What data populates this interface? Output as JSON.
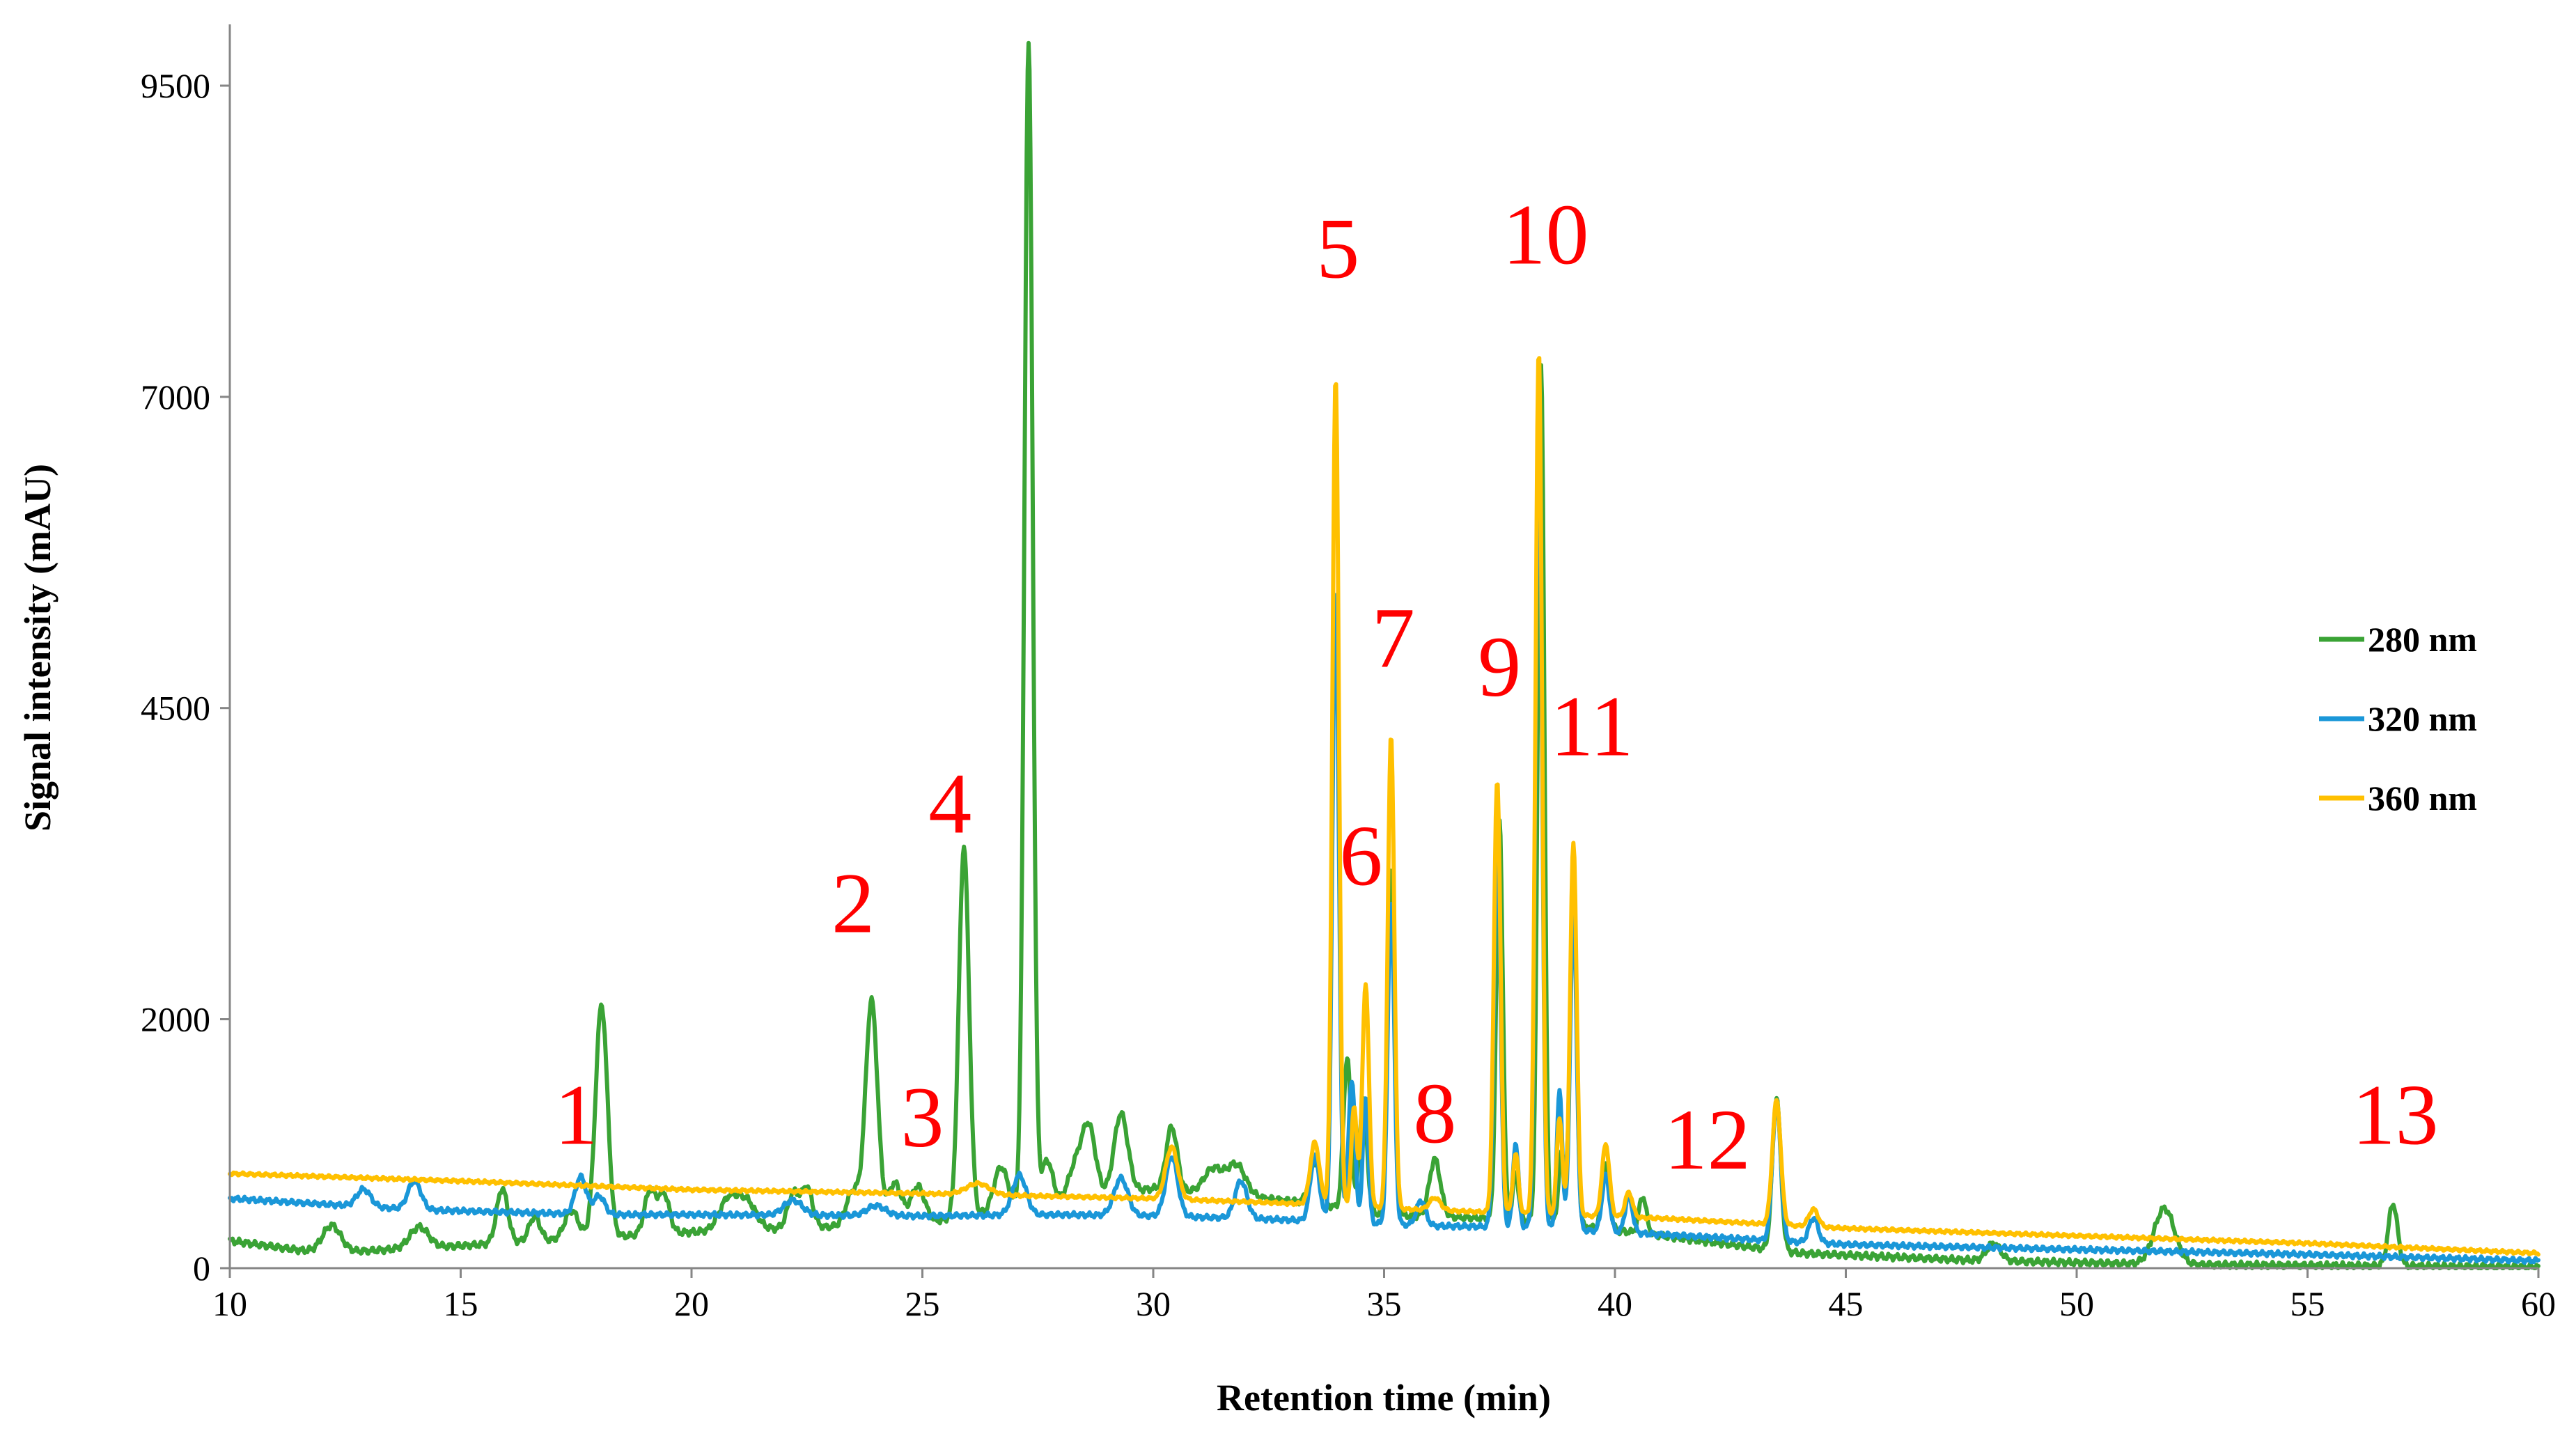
{
  "chart_data": {
    "type": "line",
    "xlabel": "Retention time (min)",
    "ylabel": "Signal intensity (mAU)",
    "xlim": [
      10,
      60
    ],
    "ylim": [
      0,
      10000
    ],
    "x_ticks": [
      10,
      15,
      20,
      25,
      30,
      35,
      40,
      45,
      50,
      55,
      60
    ],
    "y_ticks": [
      0,
      2000,
      4500,
      7000,
      9500
    ],
    "grid": false,
    "legend_position": "right",
    "series": [
      {
        "name": "280 nm",
        "color": "#3aa335",
        "baseline": [
          [
            10,
            220
          ],
          [
            12,
            120
          ],
          [
            15,
            180
          ],
          [
            20,
            290
          ],
          [
            25,
            360
          ],
          [
            27,
            480
          ],
          [
            30,
            640
          ],
          [
            33,
            540
          ],
          [
            35,
            430
          ],
          [
            38,
            390
          ],
          [
            41,
            260
          ],
          [
            44,
            120
          ],
          [
            48,
            60
          ],
          [
            52,
            30
          ],
          [
            56,
            20
          ],
          [
            60,
            10
          ]
        ],
        "peaks": [
          [
            12.2,
            220,
            0.2
          ],
          [
            14.1,
            170,
            0.2
          ],
          [
            15.9,
            440,
            0.12
          ],
          [
            16.6,
            200,
            0.12
          ],
          [
            17.4,
            230,
            0.15
          ],
          [
            18.05,
            1870,
            0.13
          ],
          [
            19.1,
            350,
            0.12
          ],
          [
            19.4,
            320,
            0.12
          ],
          [
            20.8,
            250,
            0.2
          ],
          [
            21.2,
            220,
            0.2
          ],
          [
            22.2,
            280,
            0.12
          ],
          [
            22.5,
            320,
            0.12
          ],
          [
            23.5,
            280,
            0.15
          ],
          [
            23.9,
            1800,
            0.13
          ],
          [
            24.4,
            330,
            0.15
          ],
          [
            24.9,
            300,
            0.15
          ],
          [
            25.9,
            2970,
            0.11
          ],
          [
            26.7,
            350,
            0.15
          ],
          [
            27.3,
            9340,
            0.09
          ],
          [
            27.7,
            350,
            0.12
          ],
          [
            28.3,
            250,
            0.15
          ],
          [
            28.6,
            570,
            0.15
          ],
          [
            29.3,
            640,
            0.15
          ],
          [
            30.4,
            510,
            0.12
          ],
          [
            31.3,
            200,
            0.2
          ],
          [
            31.8,
            250,
            0.2
          ],
          [
            33.5,
            340,
            0.12
          ],
          [
            34.2,
            1220,
            0.08
          ],
          [
            34.55,
            900,
            0.08
          ],
          [
            35.15,
            2800,
            0.07
          ],
          [
            36.1,
            460,
            0.12
          ],
          [
            37.5,
            3200,
            0.07
          ],
          [
            37.85,
            380,
            0.06
          ],
          [
            38.4,
            6900,
            0.07
          ],
          [
            38.85,
            570,
            0.07
          ],
          [
            39.1,
            2700,
            0.07
          ],
          [
            39.8,
            520,
            0.08
          ],
          [
            40.6,
            300,
            0.08
          ],
          [
            43.5,
            1230,
            0.09
          ],
          [
            48.2,
            140,
            0.15
          ],
          [
            51.9,
            450,
            0.22
          ],
          [
            56.85,
            500,
            0.1
          ]
        ],
        "noise": 28
      },
      {
        "name": "320 nm",
        "color": "#1a97d8",
        "baseline": [
          [
            10,
            560
          ],
          [
            14,
            470
          ],
          [
            18,
            430
          ],
          [
            20,
            430
          ],
          [
            25,
            420
          ],
          [
            28,
            430
          ],
          [
            30,
            420
          ],
          [
            32,
            400
          ],
          [
            33.5,
            380
          ],
          [
            36,
            340
          ],
          [
            38,
            330
          ],
          [
            41,
            270
          ],
          [
            43,
            230
          ],
          [
            45,
            190
          ],
          [
            50,
            150
          ],
          [
            55,
            110
          ],
          [
            60,
            60
          ]
        ],
        "peaks": [
          [
            12.9,
            140,
            0.15
          ],
          [
            14.0,
            230,
            0.14
          ],
          [
            17.6,
            300,
            0.12
          ],
          [
            18.0,
            150,
            0.12
          ],
          [
            22.2,
            120,
            0.2
          ],
          [
            24.0,
            80,
            0.2
          ],
          [
            27.1,
            320,
            0.15
          ],
          [
            29.3,
            300,
            0.15
          ],
          [
            30.4,
            480,
            0.13
          ],
          [
            31.9,
            300,
            0.13
          ],
          [
            33.5,
            520,
            0.1
          ],
          [
            33.95,
            5100,
            0.07
          ],
          [
            34.3,
            1150,
            0.07
          ],
          [
            34.6,
            1000,
            0.06
          ],
          [
            35.15,
            2600,
            0.07
          ],
          [
            35.8,
            200,
            0.1
          ],
          [
            37.45,
            3200,
            0.07
          ],
          [
            37.85,
            680,
            0.06
          ],
          [
            38.35,
            6600,
            0.07
          ],
          [
            38.8,
            1100,
            0.06
          ],
          [
            39.1,
            2600,
            0.07
          ],
          [
            39.8,
            460,
            0.08
          ],
          [
            40.3,
            300,
            0.08
          ],
          [
            43.5,
            1120,
            0.09
          ],
          [
            44.3,
            200,
            0.1
          ]
        ],
        "noise": 22
      },
      {
        "name": "360 nm",
        "color": "#ffc000",
        "baseline": [
          [
            10,
            760
          ],
          [
            15,
            700
          ],
          [
            20,
            630
          ],
          [
            25,
            600
          ],
          [
            30,
            560
          ],
          [
            33,
            520
          ],
          [
            35,
            480
          ],
          [
            38,
            440
          ],
          [
            41,
            400
          ],
          [
            43,
            360
          ],
          [
            45,
            320
          ],
          [
            50,
            260
          ],
          [
            55,
            200
          ],
          [
            60,
            120
          ]
        ],
        "peaks": [
          [
            26.2,
            90,
            0.25
          ],
          [
            30.4,
            420,
            0.13
          ],
          [
            33.5,
            500,
            0.1
          ],
          [
            33.95,
            6660,
            0.07
          ],
          [
            34.35,
            800,
            0.06
          ],
          [
            34.6,
            1800,
            0.07
          ],
          [
            35.15,
            3800,
            0.07
          ],
          [
            36.1,
            100,
            0.12
          ],
          [
            37.45,
            3480,
            0.07
          ],
          [
            37.85,
            480,
            0.06
          ],
          [
            38.35,
            6940,
            0.07
          ],
          [
            38.8,
            780,
            0.06
          ],
          [
            39.1,
            2990,
            0.07
          ],
          [
            39.8,
            580,
            0.08
          ],
          [
            40.3,
            200,
            0.08
          ],
          [
            43.5,
            1000,
            0.09
          ],
          [
            44.3,
            140,
            0.1
          ]
        ],
        "noise": 14
      }
    ],
    "annotations": [
      {
        "text": "1",
        "x": 17.5,
        "y": 1000
      },
      {
        "text": "2",
        "x": 23.5,
        "y": 2700
      },
      {
        "text": "3",
        "x": 25.0,
        "y": 980
      },
      {
        "text": "4",
        "x": 25.6,
        "y": 3500
      },
      {
        "text": "5",
        "x": 34.0,
        "y": 7960
      },
      {
        "text": "6",
        "x": 34.5,
        "y": 3080
      },
      {
        "text": "7",
        "x": 35.2,
        "y": 4830
      },
      {
        "text": "8",
        "x": 36.1,
        "y": 1010
      },
      {
        "text": "9",
        "x": 37.5,
        "y": 4600
      },
      {
        "text": "10",
        "x": 38.5,
        "y": 8070
      },
      {
        "text": "11",
        "x": 39.5,
        "y": 4120
      },
      {
        "text": "12",
        "x": 42.0,
        "y": 800
      },
      {
        "text": "13",
        "x": 56.9,
        "y": 1000
      }
    ]
  }
}
